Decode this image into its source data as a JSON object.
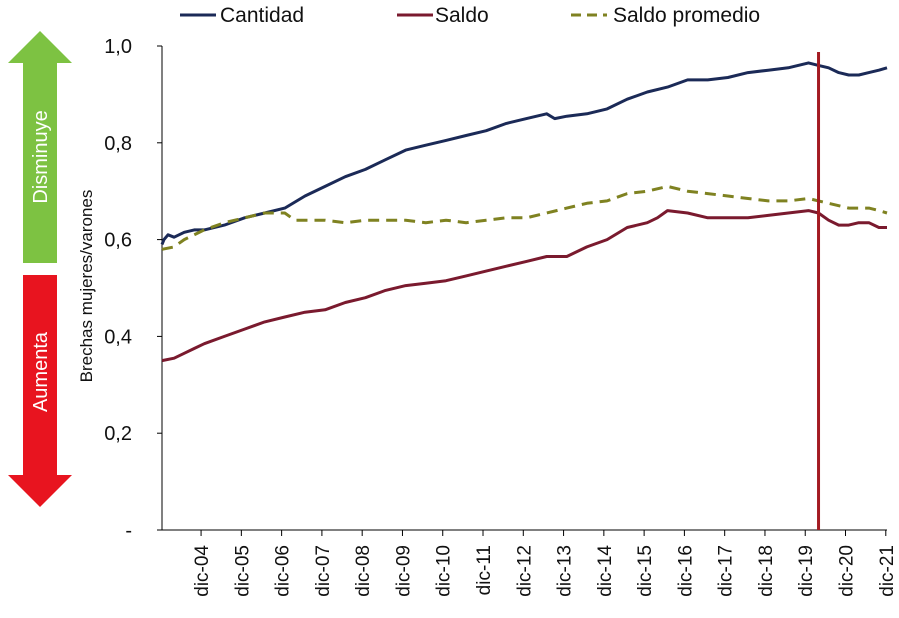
{
  "chart_data": {
    "type": "line",
    "title": "",
    "xlabel": "",
    "ylabel": "Brechas mujeres/varones",
    "ylim": [
      0,
      1
    ],
    "y_ticks": [
      {
        "value": 0,
        "label": "-"
      },
      {
        "value": 0.2,
        "label": "0,2"
      },
      {
        "value": 0.4,
        "label": "0,4"
      },
      {
        "value": 0.6,
        "label": "0,6"
      },
      {
        "value": 0.8,
        "label": "0,8"
      },
      {
        "value": 1.0,
        "label": "1,0"
      }
    ],
    "x_ticks": [
      {
        "t": 2004.92,
        "label": "dic-04"
      },
      {
        "t": 2005.92,
        "label": "dic-05"
      },
      {
        "t": 2006.92,
        "label": "dic-06"
      },
      {
        "t": 2007.92,
        "label": "dic-07"
      },
      {
        "t": 2008.92,
        "label": "dic-08"
      },
      {
        "t": 2009.92,
        "label": "dic-09"
      },
      {
        "t": 2010.92,
        "label": "dic-10"
      },
      {
        "t": 2011.92,
        "label": "dic-11"
      },
      {
        "t": 2012.92,
        "label": "dic-12"
      },
      {
        "t": 2013.92,
        "label": "dic-13"
      },
      {
        "t": 2014.92,
        "label": "dic-14"
      },
      {
        "t": 2015.92,
        "label": "dic-15"
      },
      {
        "t": 2016.92,
        "label": "dic-16"
      },
      {
        "t": 2017.92,
        "label": "dic-17"
      },
      {
        "t": 2018.92,
        "label": "dic-18"
      },
      {
        "t": 2019.92,
        "label": "dic-19"
      },
      {
        "t": 2020.92,
        "label": "dic-20"
      },
      {
        "t": 2021.92,
        "label": "dic-21"
      }
    ],
    "x_range": [
      2003.95,
      2021.95
    ],
    "vertical_marker": 2020.25,
    "series": [
      {
        "name": "Cantidad",
        "color": "#1b2a57",
        "style": "solid",
        "points": [
          [
            2003.95,
            0.59
          ],
          [
            2004.0,
            0.6
          ],
          [
            2004.1,
            0.61
          ],
          [
            2004.25,
            0.605
          ],
          [
            2004.5,
            0.615
          ],
          [
            2004.75,
            0.62
          ],
          [
            2005.0,
            0.62
          ],
          [
            2005.5,
            0.63
          ],
          [
            2006.0,
            0.645
          ],
          [
            2006.5,
            0.655
          ],
          [
            2007.0,
            0.665
          ],
          [
            2007.5,
            0.69
          ],
          [
            2008.0,
            0.71
          ],
          [
            2008.5,
            0.73
          ],
          [
            2009.0,
            0.745
          ],
          [
            2009.5,
            0.765
          ],
          [
            2010.0,
            0.785
          ],
          [
            2010.5,
            0.795
          ],
          [
            2011.0,
            0.805
          ],
          [
            2011.5,
            0.815
          ],
          [
            2012.0,
            0.825
          ],
          [
            2012.5,
            0.84
          ],
          [
            2013.0,
            0.85
          ],
          [
            2013.5,
            0.86
          ],
          [
            2013.7,
            0.85
          ],
          [
            2014.0,
            0.855
          ],
          [
            2014.5,
            0.86
          ],
          [
            2015.0,
            0.87
          ],
          [
            2015.5,
            0.89
          ],
          [
            2016.0,
            0.905
          ],
          [
            2016.5,
            0.915
          ],
          [
            2017.0,
            0.93
          ],
          [
            2017.5,
            0.93
          ],
          [
            2018.0,
            0.935
          ],
          [
            2018.5,
            0.945
          ],
          [
            2019.0,
            0.95
          ],
          [
            2019.5,
            0.955
          ],
          [
            2020.0,
            0.965
          ],
          [
            2020.25,
            0.96
          ],
          [
            2020.5,
            0.955
          ],
          [
            2020.75,
            0.945
          ],
          [
            2021.0,
            0.94
          ],
          [
            2021.25,
            0.94
          ],
          [
            2021.5,
            0.945
          ],
          [
            2021.75,
            0.95
          ],
          [
            2021.95,
            0.955
          ]
        ]
      },
      {
        "name": "Saldo",
        "color": "#7a1a2e",
        "style": "solid",
        "points": [
          [
            2003.95,
            0.35
          ],
          [
            2004.25,
            0.355
          ],
          [
            2004.5,
            0.365
          ],
          [
            2004.75,
            0.375
          ],
          [
            2005.0,
            0.385
          ],
          [
            2005.5,
            0.4
          ],
          [
            2006.0,
            0.415
          ],
          [
            2006.5,
            0.43
          ],
          [
            2007.0,
            0.44
          ],
          [
            2007.5,
            0.45
          ],
          [
            2008.0,
            0.455
          ],
          [
            2008.5,
            0.47
          ],
          [
            2009.0,
            0.48
          ],
          [
            2009.5,
            0.495
          ],
          [
            2010.0,
            0.505
          ],
          [
            2010.5,
            0.51
          ],
          [
            2011.0,
            0.515
          ],
          [
            2011.5,
            0.525
          ],
          [
            2012.0,
            0.535
          ],
          [
            2012.5,
            0.545
          ],
          [
            2013.0,
            0.555
          ],
          [
            2013.5,
            0.565
          ],
          [
            2014.0,
            0.565
          ],
          [
            2014.5,
            0.585
          ],
          [
            2015.0,
            0.6
          ],
          [
            2015.5,
            0.625
          ],
          [
            2016.0,
            0.635
          ],
          [
            2016.25,
            0.645
          ],
          [
            2016.5,
            0.66
          ],
          [
            2017.0,
            0.655
          ],
          [
            2017.5,
            0.645
          ],
          [
            2018.0,
            0.645
          ],
          [
            2018.5,
            0.645
          ],
          [
            2019.0,
            0.65
          ],
          [
            2019.5,
            0.655
          ],
          [
            2020.0,
            0.66
          ],
          [
            2020.25,
            0.655
          ],
          [
            2020.5,
            0.64
          ],
          [
            2020.75,
            0.63
          ],
          [
            2021.0,
            0.63
          ],
          [
            2021.25,
            0.635
          ],
          [
            2021.5,
            0.635
          ],
          [
            2021.75,
            0.625
          ],
          [
            2021.95,
            0.625
          ]
        ]
      },
      {
        "name": "Saldo promedio",
        "color": "#7f8221",
        "style": "dashed",
        "points": [
          [
            2003.95,
            0.58
          ],
          [
            2004.25,
            0.585
          ],
          [
            2004.5,
            0.6
          ],
          [
            2004.75,
            0.61
          ],
          [
            2005.0,
            0.62
          ],
          [
            2005.5,
            0.635
          ],
          [
            2006.0,
            0.645
          ],
          [
            2006.5,
            0.655
          ],
          [
            2007.0,
            0.655
          ],
          [
            2007.25,
            0.64
          ],
          [
            2007.5,
            0.64
          ],
          [
            2008.0,
            0.64
          ],
          [
            2008.5,
            0.635
          ],
          [
            2009.0,
            0.64
          ],
          [
            2009.5,
            0.64
          ],
          [
            2010.0,
            0.64
          ],
          [
            2010.5,
            0.635
          ],
          [
            2011.0,
            0.64
          ],
          [
            2011.5,
            0.635
          ],
          [
            2012.0,
            0.64
          ],
          [
            2012.5,
            0.645
          ],
          [
            2013.0,
            0.645
          ],
          [
            2013.5,
            0.655
          ],
          [
            2014.0,
            0.665
          ],
          [
            2014.5,
            0.675
          ],
          [
            2015.0,
            0.68
          ],
          [
            2015.5,
            0.695
          ],
          [
            2016.0,
            0.7
          ],
          [
            2016.5,
            0.71
          ],
          [
            2017.0,
            0.7
          ],
          [
            2017.5,
            0.695
          ],
          [
            2018.0,
            0.69
          ],
          [
            2018.5,
            0.685
          ],
          [
            2019.0,
            0.68
          ],
          [
            2019.5,
            0.68
          ],
          [
            2020.0,
            0.685
          ],
          [
            2020.25,
            0.68
          ],
          [
            2020.5,
            0.675
          ],
          [
            2020.75,
            0.67
          ],
          [
            2021.0,
            0.665
          ],
          [
            2021.25,
            0.665
          ],
          [
            2021.5,
            0.665
          ],
          [
            2021.75,
            0.66
          ],
          [
            2021.95,
            0.655
          ]
        ]
      }
    ],
    "side_arrows": {
      "up_label": "Disminuye",
      "up_color": "#7dc242",
      "down_label": "Aumenta",
      "down_color": "#e8141f"
    },
    "marker_color": "#a31b22"
  }
}
